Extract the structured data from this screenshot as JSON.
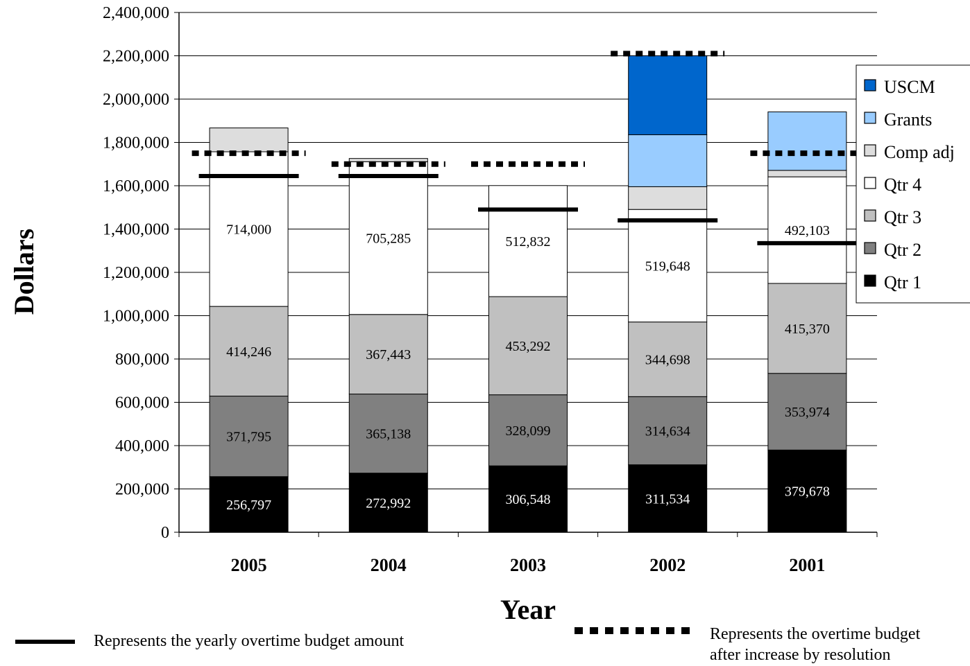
{
  "chart_data": {
    "type": "bar",
    "stacked": true,
    "xlabel": "Year",
    "ylabel": "Dollars",
    "ylim": [
      0,
      2400000
    ],
    "y_ticks": [
      "0",
      "200,000",
      "400,000",
      "600,000",
      "800,000",
      "1,000,000",
      "1,200,000",
      "1,400,000",
      "1,600,000",
      "1,800,000",
      "2,000,000",
      "2,200,000",
      "2,400,000"
    ],
    "grid": true,
    "legend_position": "right",
    "categories": [
      "2005",
      "2004",
      "2003",
      "2002",
      "2001"
    ],
    "series": [
      {
        "name": "Qtr 1",
        "color": "#000000",
        "label_color": "#ffffff",
        "values": [
          256797,
          272992,
          306548,
          311534,
          379678
        ],
        "labels": [
          "256,797",
          "272,992",
          "306,548",
          "311,534",
          "379,678"
        ]
      },
      {
        "name": "Qtr 2",
        "color": "#808080",
        "label_color": "#000000",
        "values": [
          371795,
          365138,
          328099,
          314634,
          353974
        ],
        "labels": [
          "371,795",
          "365,138",
          "328,099",
          "314,634",
          "353,974"
        ]
      },
      {
        "name": "Qtr 3",
        "color": "#c0c0c0",
        "label_color": "#000000",
        "values": [
          414246,
          367443,
          453292,
          344698,
          415370
        ],
        "labels": [
          "414,246",
          "367,443",
          "453,292",
          "344,698",
          "415,370"
        ]
      },
      {
        "name": "Qtr 4",
        "color": "#ffffff",
        "label_color": "#000000",
        "values": [
          714000,
          705285,
          512832,
          519648,
          492103
        ],
        "labels": [
          "714,000",
          "705,285",
          "512,832",
          "519,648",
          "492,103"
        ]
      },
      {
        "name": "Comp adj",
        "color": "#dddddd",
        "label_color": "#000000",
        "values": [
          110000,
          15000,
          0,
          105000,
          30000
        ],
        "labels": []
      },
      {
        "name": "Grants",
        "color": "#99ccff",
        "label_color": "#000000",
        "values": [
          0,
          0,
          0,
          240000,
          270000
        ],
        "labels": []
      },
      {
        "name": "USCM",
        "color": "#0066cc",
        "label_color": "#000000",
        "values": [
          0,
          0,
          0,
          365000,
          0
        ],
        "labels": []
      }
    ],
    "legend_order": [
      "USCM",
      "Grants",
      "Comp adj",
      "Qtr 4",
      "Qtr 3",
      "Qtr 2",
      "Qtr 1"
    ],
    "overtime_budget": [
      1645000,
      1645000,
      1490000,
      1440000,
      1335000
    ],
    "overtime_budget_after_increase": [
      1750000,
      1700000,
      1700000,
      2210000,
      1750000
    ]
  },
  "notes": {
    "budget_line": "Represents the yearly overtime budget amount",
    "increased_line_1": "Represents the overtime budget",
    "increased_line_2": "after increase by resolution"
  }
}
